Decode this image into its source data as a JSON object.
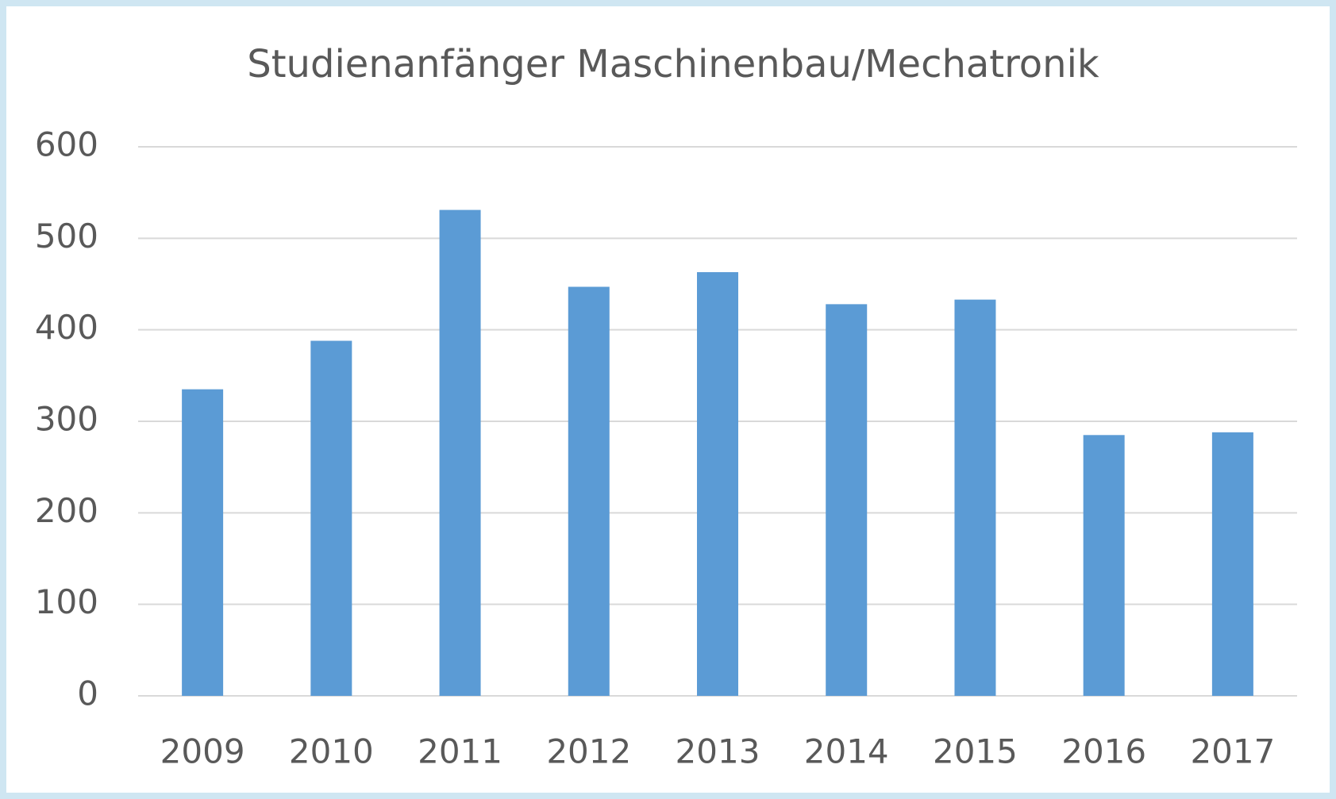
{
  "chart_data": {
    "type": "bar",
    "title": "Studienanfänger Maschinenbau/Mechatronik",
    "categories": [
      "2009",
      "2010",
      "2011",
      "2012",
      "2013",
      "2014",
      "2015",
      "2016",
      "2017"
    ],
    "values": [
      335,
      388,
      531,
      447,
      463,
      428,
      433,
      285,
      288
    ],
    "color": "#5b9bd5",
    "ylim": [
      0,
      600
    ],
    "yticks": [
      0,
      100,
      200,
      300,
      400,
      500,
      600
    ],
    "grid": true
  }
}
